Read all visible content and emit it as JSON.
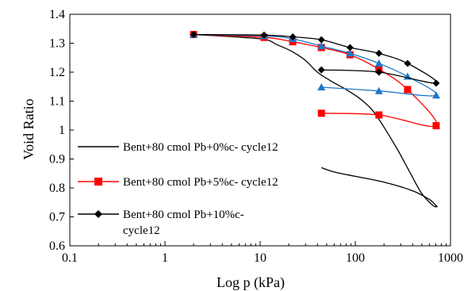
{
  "chart_data": {
    "type": "line",
    "title": "",
    "xlabel": "Log p (kPa)",
    "ylabel": "Void Ratio",
    "xscale": "log",
    "xlim": [
      0.1,
      1000
    ],
    "ylim": [
      0.6,
      1.4
    ],
    "xticks": [
      "0.1",
      "1",
      "10",
      "100",
      "1000"
    ],
    "yticks": [
      "0.6",
      "0.7",
      "0.8",
      "0.9",
      "1",
      "1.1",
      "1.2",
      "1.3",
      "1.4"
    ],
    "grid": false,
    "legend_position": "bottom-left inside",
    "series": [
      {
        "name": "Bent+80 cmol Pb+0%c- cycle12",
        "color": "#000000",
        "marker": "none",
        "x": [
          2,
          10,
          15,
          22,
          30,
          40,
          55,
          80,
          110,
          150,
          200,
          280,
          380,
          500,
          650,
          720,
          700,
          600,
          400,
          200,
          100,
          60,
          44
        ],
        "y": [
          1.33,
          1.315,
          1.295,
          1.27,
          1.24,
          1.2,
          1.17,
          1.14,
          1.11,
          1.07,
          1.01,
          0.93,
          0.85,
          0.78,
          0.74,
          0.735,
          0.74,
          0.76,
          0.79,
          0.82,
          0.84,
          0.855,
          0.87
        ]
      },
      {
        "name": "Bent+80 cmol Pb+5%c- cycle12",
        "color": "#ff0000",
        "marker": "square",
        "x": [
          2,
          11,
          22,
          44,
          88,
          177,
          354,
          707,
          177,
          44
        ],
        "y": [
          1.33,
          1.32,
          1.305,
          1.285,
          1.26,
          1.21,
          1.14,
          1.015,
          1.052,
          1.058
        ],
        "extra_points": []
      },
      {
        "name": "",
        "color": "#1f78c8",
        "marker": "triangle",
        "x": [
          2,
          11,
          22,
          44,
          88,
          177,
          354,
          707,
          177,
          44
        ],
        "y": [
          1.33,
          1.325,
          1.315,
          1.29,
          1.265,
          1.23,
          1.185,
          1.12,
          1.135,
          1.148
        ]
      },
      {
        "name": "Bent+80 cmol Pb+10%c- cycle12",
        "color": "#000000",
        "marker": "diamond",
        "x": [
          2,
          11,
          22,
          44,
          88,
          177,
          354,
          707,
          177,
          44
        ],
        "y": [
          1.33,
          1.328,
          1.322,
          1.312,
          1.285,
          1.265,
          1.23,
          1.162,
          1.2,
          1.208
        ]
      }
    ],
    "legend": [
      "Bent+80 cmol Pb+0%c- cycle12",
      "Bent+80 cmol Pb+5%c- cycle12",
      "Bent+80 cmol Pb+10%c-",
      "cycle12"
    ]
  }
}
